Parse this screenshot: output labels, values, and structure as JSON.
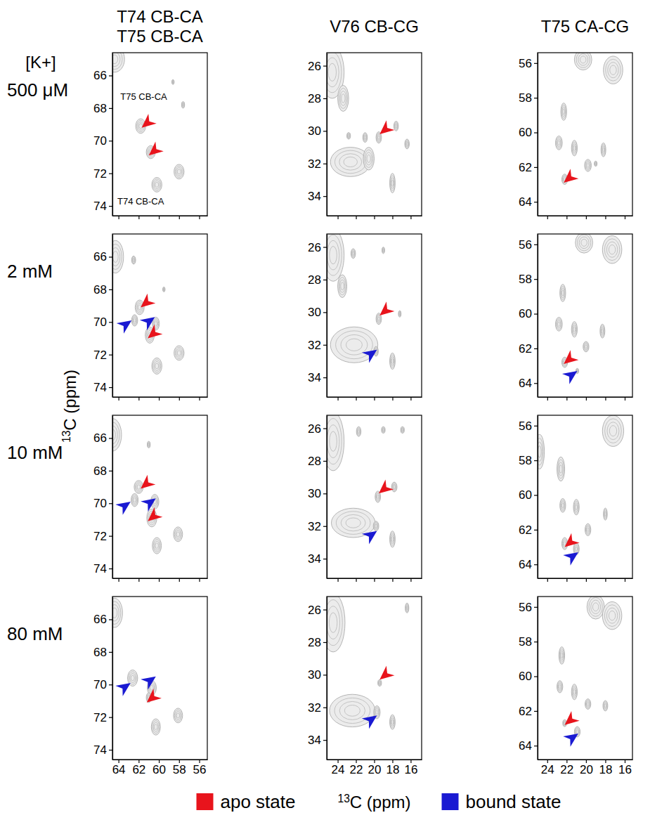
{
  "figure": {
    "row_header": "[K+]",
    "row_labels": [
      "500 μM",
      "2 mM",
      "10 mM",
      "80 mM"
    ],
    "column_titles": [
      [
        "T74 CB-CA",
        "T75 CB-CA"
      ],
      [
        "V76 CB-CG"
      ],
      [
        "T75 CA-CG"
      ]
    ],
    "xlabel": "13C (ppm)",
    "ylabel": "13C (ppm)",
    "states": [
      {
        "name": "apo state",
        "color": "#e8141c"
      },
      {
        "name": "bound state",
        "color": "#1a1ad2"
      }
    ]
  },
  "chart_data": [
    {
      "type": "contour",
      "xlim": [
        64.6,
        55.2
      ],
      "ylim": [
        64.6,
        74.6
      ],
      "xticks": [
        64,
        62,
        60,
        58,
        56
      ],
      "yticks": [
        66,
        68,
        70,
        72,
        74
      ],
      "tick_labels": "y",
      "peaks": [
        {
          "x": 64.4,
          "y": 65.0,
          "wx": 1.0,
          "wy": 0.8
        },
        {
          "x": 61.8,
          "y": 69.1,
          "wx": 0.5,
          "wy": 0.45
        },
        {
          "x": 60.8,
          "y": 70.7,
          "wx": 0.45,
          "wy": 0.4
        },
        {
          "x": 60.2,
          "y": 72.7,
          "wx": 0.5,
          "wy": 0.45
        },
        {
          "x": 58.0,
          "y": 71.9,
          "wx": 0.5,
          "wy": 0.45
        },
        {
          "x": 57.6,
          "y": 67.8,
          "wx": 0.15,
          "wy": 0.2
        },
        {
          "x": 58.6,
          "y": 66.4,
          "wx": 0.12,
          "wy": 0.15
        }
      ],
      "apo": [
        {
          "x": 61.7,
          "y": 69.2
        },
        {
          "x": 61.0,
          "y": 70.9
        }
      ],
      "bound": [],
      "annotations": [
        {
          "text": "T75 CB-CA",
          "x": 61.5,
          "y": 67.5
        },
        {
          "text": "T74 CB-CA",
          "x": 61.8,
          "y": 73.9
        }
      ]
    },
    {
      "type": "contour",
      "xlim": [
        25.2,
        14.8
      ],
      "ylim": [
        25.2,
        35.2
      ],
      "xticks": [
        24,
        22,
        20,
        18,
        16
      ],
      "yticks": [
        26,
        28,
        30,
        32,
        34
      ],
      "tick_labels": "y",
      "peaks": [
        {
          "x": 24.6,
          "y": 26.4,
          "wx": 1.3,
          "wy": 1.6
        },
        {
          "x": 23.4,
          "y": 28.0,
          "wx": 0.6,
          "wy": 0.8
        },
        {
          "x": 22.6,
          "y": 31.9,
          "wx": 2.2,
          "wy": 0.9
        },
        {
          "x": 20.6,
          "y": 31.7,
          "wx": 0.6,
          "wy": 0.7
        },
        {
          "x": 22.8,
          "y": 30.3,
          "wx": 0.2,
          "wy": 0.2
        },
        {
          "x": 21.0,
          "y": 30.4,
          "wx": 0.25,
          "wy": 0.3
        },
        {
          "x": 19.5,
          "y": 30.4,
          "wx": 0.3,
          "wy": 0.35
        },
        {
          "x": 17.6,
          "y": 29.7,
          "wx": 0.25,
          "wy": 0.3
        },
        {
          "x": 16.4,
          "y": 30.8,
          "wx": 0.25,
          "wy": 0.3
        },
        {
          "x": 18.0,
          "y": 33.2,
          "wx": 0.3,
          "wy": 0.6
        }
      ],
      "apo": [
        {
          "x": 19.4,
          "y": 30.2
        }
      ],
      "bound": []
    },
    {
      "type": "contour",
      "xlim": [
        25.0,
        15.2
      ],
      "ylim": [
        55.4,
        64.8
      ],
      "xticks": [
        24,
        22,
        20,
        18,
        16
      ],
      "yticks": [
        56,
        58,
        60,
        62,
        64
      ],
      "tick_labels": "y",
      "peaks": [
        {
          "x": 20.3,
          "y": 55.8,
          "wx": 0.9,
          "wy": 0.6
        },
        {
          "x": 17.2,
          "y": 56.4,
          "wx": 1.0,
          "wy": 0.8
        },
        {
          "x": 22.3,
          "y": 58.8,
          "wx": 0.3,
          "wy": 0.5
        },
        {
          "x": 22.8,
          "y": 60.6,
          "wx": 0.35,
          "wy": 0.4
        },
        {
          "x": 21.2,
          "y": 60.9,
          "wx": 0.3,
          "wy": 0.45
        },
        {
          "x": 19.8,
          "y": 61.9,
          "wx": 0.35,
          "wy": 0.35
        },
        {
          "x": 18.2,
          "y": 61.0,
          "wx": 0.25,
          "wy": 0.4
        },
        {
          "x": 19.0,
          "y": 61.8,
          "wx": 0.15,
          "wy": 0.15
        },
        {
          "x": 22.2,
          "y": 62.7,
          "wx": 0.3,
          "wy": 0.3
        }
      ],
      "apo": [
        {
          "x": 22.3,
          "y": 62.9
        }
      ],
      "bound": []
    },
    {
      "type": "contour",
      "xlim": [
        64.6,
        55.2
      ],
      "ylim": [
        64.6,
        74.6
      ],
      "xticks": [
        64,
        62,
        60,
        58,
        56
      ],
      "yticks": [
        66,
        68,
        70,
        72,
        74
      ],
      "tick_labels": "y",
      "peaks": [
        {
          "x": 64.3,
          "y": 66.0,
          "wx": 0.8,
          "wy": 1.0
        },
        {
          "x": 62.5,
          "y": 66.2,
          "wx": 0.2,
          "wy": 0.25
        },
        {
          "x": 61.9,
          "y": 69.1,
          "wx": 0.45,
          "wy": 0.45
        },
        {
          "x": 62.4,
          "y": 69.9,
          "wx": 0.3,
          "wy": 0.35
        },
        {
          "x": 60.9,
          "y": 70.8,
          "wx": 0.45,
          "wy": 0.5
        },
        {
          "x": 60.3,
          "y": 70.1,
          "wx": 0.35,
          "wy": 0.4
        },
        {
          "x": 60.2,
          "y": 72.7,
          "wx": 0.5,
          "wy": 0.5
        },
        {
          "x": 58.0,
          "y": 71.9,
          "wx": 0.5,
          "wy": 0.45
        },
        {
          "x": 59.5,
          "y": 68.0,
          "wx": 0.12,
          "wy": 0.15
        }
      ],
      "apo": [
        {
          "x": 61.8,
          "y": 69.1
        },
        {
          "x": 61.1,
          "y": 71.0
        }
      ],
      "bound": [
        {
          "x": 62.7,
          "y": 69.9
        },
        {
          "x": 60.4,
          "y": 69.7
        }
      ]
    },
    {
      "type": "contour",
      "xlim": [
        25.2,
        14.8
      ],
      "ylim": [
        25.2,
        35.2
      ],
      "xticks": [
        24,
        22,
        20,
        18,
        16
      ],
      "yticks": [
        26,
        28,
        30,
        32,
        34
      ],
      "tick_labels": "y",
      "peaks": [
        {
          "x": 24.5,
          "y": 26.5,
          "wx": 1.2,
          "wy": 1.6
        },
        {
          "x": 23.5,
          "y": 28.4,
          "wx": 0.5,
          "wy": 0.7
        },
        {
          "x": 22.2,
          "y": 32.0,
          "wx": 2.6,
          "wy": 1.1
        },
        {
          "x": 19.5,
          "y": 30.4,
          "wx": 0.3,
          "wy": 0.35
        },
        {
          "x": 19.8,
          "y": 32.4,
          "wx": 0.25,
          "wy": 0.3
        },
        {
          "x": 18.0,
          "y": 33.0,
          "wx": 0.3,
          "wy": 0.5
        },
        {
          "x": 22.3,
          "y": 26.4,
          "wx": 0.25,
          "wy": 0.3
        },
        {
          "x": 19.0,
          "y": 26.2,
          "wx": 0.15,
          "wy": 0.2
        },
        {
          "x": 17.2,
          "y": 30.1,
          "wx": 0.15,
          "wy": 0.2
        }
      ],
      "apo": [
        {
          "x": 19.4,
          "y": 30.2
        }
      ],
      "bound": [
        {
          "x": 19.7,
          "y": 32.3
        }
      ]
    },
    {
      "type": "contour",
      "xlim": [
        25.0,
        15.2
      ],
      "ylim": [
        55.4,
        64.8
      ],
      "xticks": [
        24,
        22,
        20,
        18,
        16
      ],
      "yticks": [
        56,
        58,
        60,
        62,
        64
      ],
      "tick_labels": "y",
      "peaks": [
        {
          "x": 20.2,
          "y": 55.9,
          "wx": 0.9,
          "wy": 0.6
        },
        {
          "x": 17.3,
          "y": 56.3,
          "wx": 1.0,
          "wy": 0.8
        },
        {
          "x": 22.4,
          "y": 58.8,
          "wx": 0.3,
          "wy": 0.5
        },
        {
          "x": 22.8,
          "y": 60.6,
          "wx": 0.35,
          "wy": 0.4
        },
        {
          "x": 21.2,
          "y": 60.9,
          "wx": 0.3,
          "wy": 0.45
        },
        {
          "x": 20.0,
          "y": 61.9,
          "wx": 0.3,
          "wy": 0.3
        },
        {
          "x": 18.3,
          "y": 61.0,
          "wx": 0.25,
          "wy": 0.4
        },
        {
          "x": 22.2,
          "y": 62.8,
          "wx": 0.3,
          "wy": 0.3
        },
        {
          "x": 20.9,
          "y": 63.3,
          "wx": 0.15,
          "wy": 0.15
        }
      ],
      "apo": [
        {
          "x": 22.3,
          "y": 62.9
        }
      ],
      "bound": [
        {
          "x": 20.9,
          "y": 63.3
        }
      ]
    },
    {
      "type": "contour",
      "xlim": [
        64.6,
        55.2
      ],
      "ylim": [
        64.6,
        74.6
      ],
      "xticks": [
        64,
        62,
        60,
        58,
        56
      ],
      "yticks": [
        66,
        68,
        70,
        72,
        74
      ],
      "tick_labels": "y",
      "peaks": [
        {
          "x": 64.6,
          "y": 65.8,
          "wx": 0.9,
          "wy": 1.0
        },
        {
          "x": 61.0,
          "y": 66.4,
          "wx": 0.15,
          "wy": 0.2
        },
        {
          "x": 62.0,
          "y": 69.0,
          "wx": 0.45,
          "wy": 0.4
        },
        {
          "x": 62.4,
          "y": 69.8,
          "wx": 0.35,
          "wy": 0.4
        },
        {
          "x": 60.7,
          "y": 70.9,
          "wx": 0.5,
          "wy": 0.55
        },
        {
          "x": 60.4,
          "y": 69.9,
          "wx": 0.4,
          "wy": 0.45
        },
        {
          "x": 60.2,
          "y": 72.6,
          "wx": 0.45,
          "wy": 0.5
        },
        {
          "x": 58.1,
          "y": 71.9,
          "wx": 0.45,
          "wy": 0.45
        }
      ],
      "apo": [
        {
          "x": 61.8,
          "y": 69.1
        },
        {
          "x": 61.1,
          "y": 71.1
        }
      ],
      "bound": [
        {
          "x": 62.8,
          "y": 69.9
        },
        {
          "x": 60.3,
          "y": 69.7
        }
      ]
    },
    {
      "type": "contour",
      "xlim": [
        25.2,
        14.8
      ],
      "ylim": [
        25.2,
        35.2
      ],
      "xticks": [
        24,
        22,
        20,
        18,
        16
      ],
      "yticks": [
        26,
        28,
        30,
        32,
        34
      ],
      "tick_labels": "y",
      "peaks": [
        {
          "x": 24.5,
          "y": 26.8,
          "wx": 1.2,
          "wy": 1.8
        },
        {
          "x": 22.3,
          "y": 31.8,
          "wx": 2.4,
          "wy": 0.9
        },
        {
          "x": 21.7,
          "y": 26.2,
          "wx": 0.25,
          "wy": 0.3
        },
        {
          "x": 19.0,
          "y": 26.1,
          "wx": 0.2,
          "wy": 0.2
        },
        {
          "x": 16.9,
          "y": 26.1,
          "wx": 0.2,
          "wy": 0.2
        },
        {
          "x": 19.6,
          "y": 30.2,
          "wx": 0.3,
          "wy": 0.35
        },
        {
          "x": 17.8,
          "y": 29.6,
          "wx": 0.3,
          "wy": 0.3
        },
        {
          "x": 18.0,
          "y": 32.8,
          "wx": 0.3,
          "wy": 0.5
        },
        {
          "x": 19.8,
          "y": 32.0,
          "wx": 0.3,
          "wy": 0.3
        }
      ],
      "apo": [
        {
          "x": 19.5,
          "y": 30.0
        }
      ],
      "bound": [
        {
          "x": 19.7,
          "y": 32.3
        }
      ]
    },
    {
      "type": "contour",
      "xlim": [
        25.0,
        15.2
      ],
      "ylim": [
        55.4,
        64.8
      ],
      "xticks": [
        24,
        22,
        20,
        18,
        16
      ],
      "yticks": [
        56,
        58,
        60,
        62,
        64
      ],
      "tick_labels": "y",
      "peaks": [
        {
          "x": 24.8,
          "y": 57.5,
          "wx": 0.5,
          "wy": 1.0
        },
        {
          "x": 17.2,
          "y": 56.3,
          "wx": 1.1,
          "wy": 0.9
        },
        {
          "x": 22.6,
          "y": 58.5,
          "wx": 0.4,
          "wy": 0.7
        },
        {
          "x": 22.4,
          "y": 60.6,
          "wx": 0.3,
          "wy": 0.4
        },
        {
          "x": 21.0,
          "y": 60.7,
          "wx": 0.3,
          "wy": 0.45
        },
        {
          "x": 19.8,
          "y": 62.0,
          "wx": 0.3,
          "wy": 0.35
        },
        {
          "x": 18.0,
          "y": 61.1,
          "wx": 0.2,
          "wy": 0.35
        },
        {
          "x": 22.2,
          "y": 62.8,
          "wx": 0.3,
          "wy": 0.35
        },
        {
          "x": 21.0,
          "y": 63.1,
          "wx": 0.3,
          "wy": 0.35
        }
      ],
      "apo": [
        {
          "x": 22.2,
          "y": 63.0
        }
      ],
      "bound": [
        {
          "x": 20.8,
          "y": 63.3
        }
      ]
    },
    {
      "type": "contour",
      "xlim": [
        64.6,
        55.2
      ],
      "ylim": [
        64.6,
        74.6
      ],
      "xticks": [
        64,
        62,
        60,
        58,
        56
      ],
      "yticks": [
        66,
        68,
        70,
        72,
        74
      ],
      "peaks": [
        {
          "x": 64.4,
          "y": 65.6,
          "wx": 0.8,
          "wy": 0.9
        },
        {
          "x": 62.6,
          "y": 69.6,
          "wx": 0.5,
          "wy": 0.5
        },
        {
          "x": 60.7,
          "y": 70.2,
          "wx": 0.45,
          "wy": 0.45
        },
        {
          "x": 61.0,
          "y": 70.8,
          "wx": 0.25,
          "wy": 0.3
        },
        {
          "x": 60.3,
          "y": 72.6,
          "wx": 0.45,
          "wy": 0.5
        },
        {
          "x": 58.1,
          "y": 71.9,
          "wx": 0.45,
          "wy": 0.45
        }
      ],
      "apo": [
        {
          "x": 61.2,
          "y": 71.1
        }
      ],
      "bound": [
        {
          "x": 62.8,
          "y": 69.9
        },
        {
          "x": 60.3,
          "y": 69.5
        }
      ]
    },
    {
      "type": "contour",
      "xlim": [
        25.2,
        14.8
      ],
      "ylim": [
        25.2,
        35.2
      ],
      "xticks": [
        24,
        22,
        20,
        18,
        16
      ],
      "yticks": [
        26,
        28,
        30,
        32,
        34
      ],
      "peaks": [
        {
          "x": 24.5,
          "y": 26.8,
          "wx": 1.3,
          "wy": 1.8
        },
        {
          "x": 22.4,
          "y": 32.2,
          "wx": 2.5,
          "wy": 1.0
        },
        {
          "x": 19.7,
          "y": 32.3,
          "wx": 0.35,
          "wy": 0.4
        },
        {
          "x": 19.4,
          "y": 30.5,
          "wx": 0.2,
          "wy": 0.2
        },
        {
          "x": 18.0,
          "y": 32.9,
          "wx": 0.3,
          "wy": 0.45
        },
        {
          "x": 16.4,
          "y": 25.9,
          "wx": 0.2,
          "wy": 0.3
        }
      ],
      "apo": [
        {
          "x": 19.4,
          "y": 30.3
        }
      ],
      "bound": [
        {
          "x": 19.7,
          "y": 32.5
        }
      ]
    },
    {
      "type": "contour",
      "xlim": [
        25.0,
        15.2
      ],
      "ylim": [
        55.4,
        64.8
      ],
      "xticks": [
        24,
        22,
        20,
        18,
        16
      ],
      "yticks": [
        56,
        58,
        60,
        62,
        64
      ],
      "peaks": [
        {
          "x": 19.0,
          "y": 56.0,
          "wx": 0.9,
          "wy": 0.7
        },
        {
          "x": 17.3,
          "y": 56.5,
          "wx": 1.0,
          "wy": 0.8
        },
        {
          "x": 22.5,
          "y": 58.8,
          "wx": 0.3,
          "wy": 0.5
        },
        {
          "x": 22.7,
          "y": 60.6,
          "wx": 0.3,
          "wy": 0.35
        },
        {
          "x": 21.2,
          "y": 60.9,
          "wx": 0.3,
          "wy": 0.45
        },
        {
          "x": 19.8,
          "y": 61.6,
          "wx": 0.3,
          "wy": 0.3
        },
        {
          "x": 18.0,
          "y": 61.7,
          "wx": 0.25,
          "wy": 0.3
        },
        {
          "x": 22.2,
          "y": 62.7,
          "wx": 0.2,
          "wy": 0.2
        },
        {
          "x": 20.9,
          "y": 63.2,
          "wx": 0.3,
          "wy": 0.3
        }
      ],
      "apo": [
        {
          "x": 22.2,
          "y": 62.8
        }
      ],
      "bound": [
        {
          "x": 20.8,
          "y": 63.3
        }
      ]
    }
  ]
}
